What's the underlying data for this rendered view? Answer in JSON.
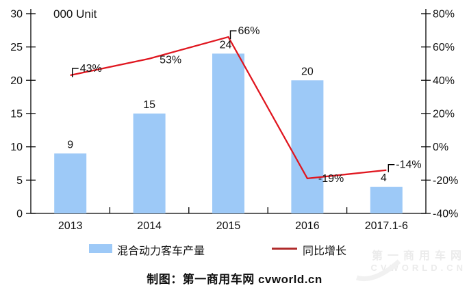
{
  "chart_data": {
    "type": "bar+line",
    "categories": [
      "2013",
      "2014",
      "2015",
      "2016",
      "2017.1-6"
    ],
    "series": [
      {
        "name": "混合动力客车产量",
        "type": "bar",
        "axis": "left",
        "values": [
          9,
          15,
          24,
          20,
          4
        ],
        "value_labels": [
          "9",
          "15",
          "24",
          "20",
          "4"
        ],
        "color": "#9DC9F7"
      },
      {
        "name": "同比增长",
        "type": "line",
        "axis": "right",
        "values": [
          43,
          53,
          66,
          -19,
          -14
        ],
        "value_labels": [
          "43%",
          "53%",
          "66%",
          "-19%",
          "-14%"
        ],
        "color": "#E0161F"
      }
    ],
    "left_axis": {
      "title": "000 Unit",
      "min": 0,
      "max": 30,
      "ticks": [
        0,
        5,
        10,
        15,
        20,
        25,
        30
      ],
      "tick_labels": [
        "0",
        "5",
        "10",
        "15",
        "20",
        "25",
        "30"
      ]
    },
    "right_axis": {
      "min": -40,
      "max": 80,
      "ticks": [
        -40,
        -20,
        0,
        20,
        40,
        60,
        80
      ],
      "tick_labels": [
        "-40%",
        "-20%",
        "0%",
        "20%",
        "40%",
        "60%",
        "80%"
      ]
    },
    "grid": false,
    "legend_position": "bottom"
  },
  "legend": {
    "bar_label": "混合动力客车产量",
    "line_label": "同比增长"
  },
  "caption": "制图：第一商用车网 cvworld.cn",
  "watermark": {
    "line1": "第一商用车网",
    "line2": "CVWORLD.CN"
  },
  "colors": {
    "bar": "#9DC9F7",
    "line": "#E0161F",
    "legend_line": "#B02B2B",
    "axis": "#000000"
  }
}
